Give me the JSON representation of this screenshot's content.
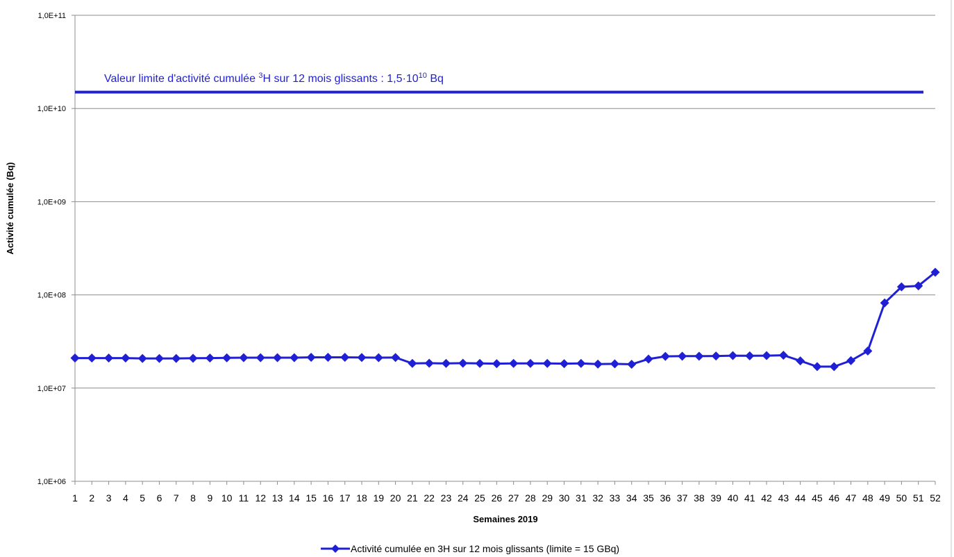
{
  "chart_data": {
    "type": "line",
    "xlabel": "Semaines 2019",
    "ylabel": "Activité cumulée (Bq)",
    "y_scale": "log",
    "ylim": [
      1000000,
      100000000000
    ],
    "y_ticks": [
      1000000,
      10000000,
      100000000,
      1000000000,
      10000000000,
      100000000000
    ],
    "y_tick_labels": [
      "1,0E+06",
      "1,0E+07",
      "1,0E+08",
      "1,0E+09",
      "1,0E+10",
      "1,0E+11"
    ],
    "grid": "horizontal",
    "legend_position": "bottom",
    "x": [
      1,
      2,
      3,
      4,
      5,
      6,
      7,
      8,
      9,
      10,
      11,
      12,
      13,
      14,
      15,
      16,
      17,
      18,
      19,
      20,
      21,
      22,
      23,
      24,
      25,
      26,
      27,
      28,
      29,
      30,
      31,
      32,
      33,
      34,
      35,
      36,
      37,
      38,
      39,
      40,
      41,
      42,
      43,
      44,
      45,
      46,
      47,
      48,
      49,
      50,
      51,
      52
    ],
    "series": [
      {
        "name": "Activité cumulée en 3H sur 12 mois glissants (limite = 15 GBq)",
        "color": "#1f1fd6",
        "marker": "diamond",
        "values": [
          21000000,
          21000000,
          21000000,
          21000000,
          20800000,
          20800000,
          20800000,
          20900000,
          21000000,
          21100000,
          21200000,
          21200000,
          21200000,
          21200000,
          21400000,
          21400000,
          21400000,
          21300000,
          21200000,
          21300000,
          18400000,
          18500000,
          18400000,
          18500000,
          18400000,
          18300000,
          18400000,
          18400000,
          18400000,
          18300000,
          18400000,
          18100000,
          18200000,
          18000000,
          20500000,
          21900000,
          22000000,
          22000000,
          22100000,
          22300000,
          22200000,
          22300000,
          22500000,
          19600000,
          17000000,
          17000000,
          19700000,
          25000000,
          82000000,
          122000000,
          125000000,
          175000000
        ]
      }
    ],
    "limit_line": {
      "value": 15000000000,
      "color": "#1f1fd6",
      "label_main": "Valeur limite d'activité cumulée ",
      "label_sup1": "3",
      "label_mid": "H sur 12 mois glissants : 1,5·10",
      "label_sup2": "10",
      "label_end": " Bq"
    }
  }
}
